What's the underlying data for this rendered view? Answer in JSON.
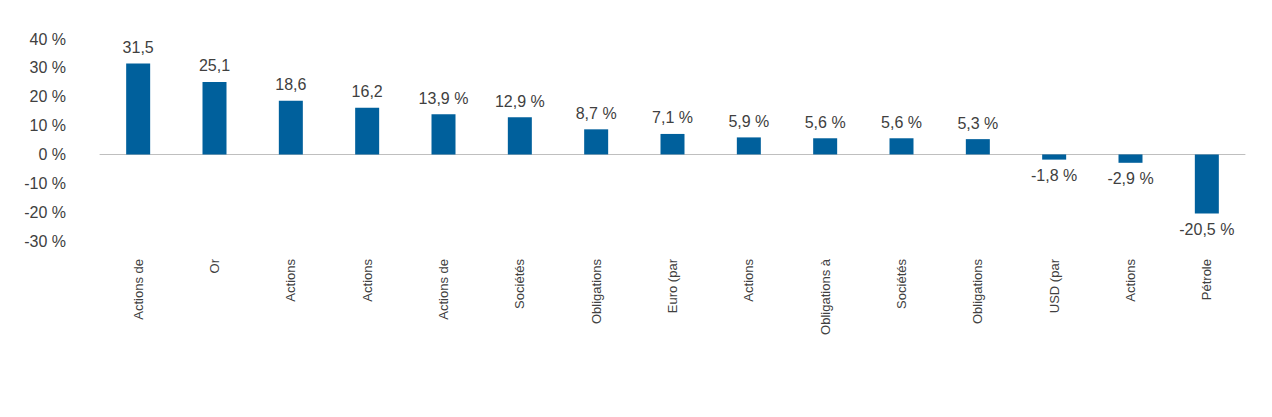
{
  "chart_data": {
    "type": "bar",
    "categories": [
      "Actions de",
      "Or",
      "Actions",
      "Actions",
      "Actions de",
      "Sociétés",
      "Obligations",
      "Euro (par",
      "Actions",
      "Obligations à",
      "Sociétés",
      "Obligations",
      "USD (par",
      "Actions",
      "Pétrole"
    ],
    "values": [
      31.5,
      25.1,
      18.6,
      16.2,
      13.9,
      12.9,
      8.7,
      7.1,
      5.9,
      5.6,
      5.6,
      5.3,
      -1.8,
      -2.9,
      -20.5
    ],
    "value_labels": [
      "31,5",
      "25,1",
      "18,6",
      "16,2",
      "13,9 %",
      "12,9 %",
      "8,7 %",
      "7,1 %",
      "5,9 %",
      "5,6 %",
      "5,6 %",
      "5,3 %",
      "-1,8 %",
      "-2,9 %",
      "-20,5 %"
    ],
    "color": "#00609c",
    "ylim": [
      -30,
      40
    ],
    "yticks": [
      {
        "value": -30,
        "label": "-30 %"
      },
      {
        "value": -20,
        "label": "-20 %"
      },
      {
        "value": -10,
        "label": "-10 %"
      },
      {
        "value": 0,
        "label": "0 %"
      },
      {
        "value": 10,
        "label": "10 %"
      },
      {
        "value": 20,
        "label": "20 %"
      },
      {
        "value": 30,
        "label": "30 %"
      },
      {
        "value": 40,
        "label": "40 %"
      }
    ],
    "grid": false,
    "data_labels": true
  }
}
